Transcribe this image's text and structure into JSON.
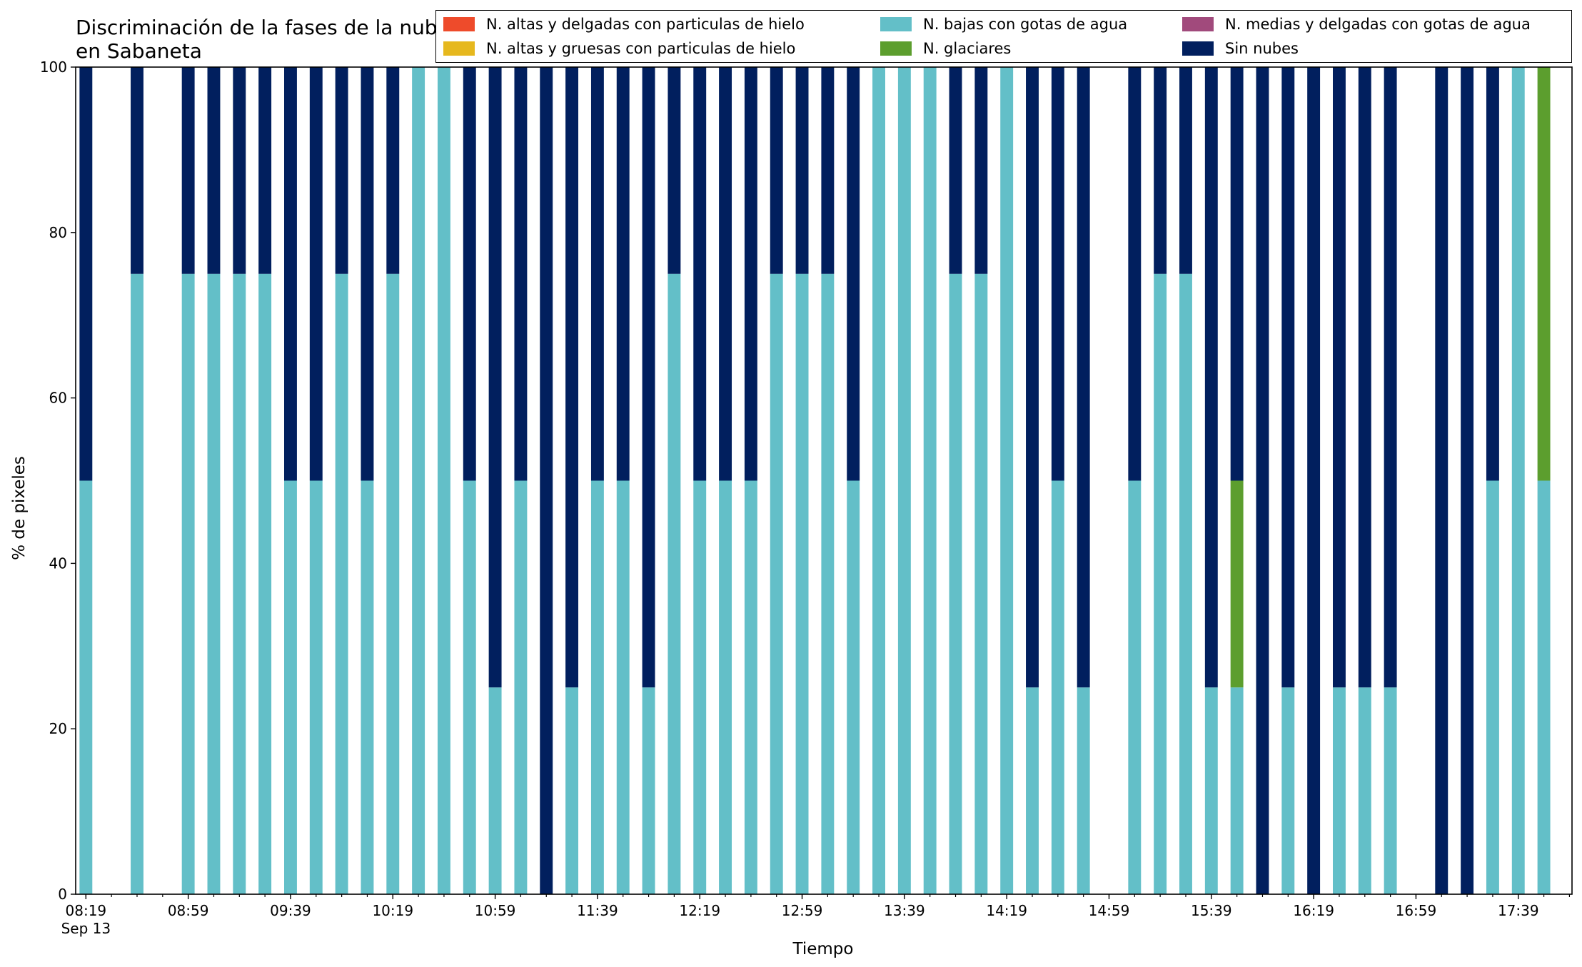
{
  "chart_data": {
    "type": "bar",
    "stacked": true,
    "title": "Discriminación de la fases de la nube en Sabaneta",
    "xlabel": "Tiempo",
    "ylabel": "% de pixeles",
    "ylim": [
      0,
      100
    ],
    "yticks": [
      0,
      20,
      40,
      60,
      80,
      100
    ],
    "xlim_minutes": [
      495,
      1080
    ],
    "xticks": [
      {
        "minute": 499,
        "label": "08:19",
        "sublabel": "Sep 13"
      },
      {
        "minute": 539,
        "label": "08:59"
      },
      {
        "minute": 579,
        "label": "09:39"
      },
      {
        "minute": 619,
        "label": "10:19"
      },
      {
        "minute": 659,
        "label": "10:59"
      },
      {
        "minute": 699,
        "label": "11:39"
      },
      {
        "minute": 739,
        "label": "12:19"
      },
      {
        "minute": 779,
        "label": "12:59"
      },
      {
        "minute": 819,
        "label": "13:39"
      },
      {
        "minute": 859,
        "label": "14:19"
      },
      {
        "minute": 899,
        "label": "14:59"
      },
      {
        "minute": 939,
        "label": "15:39"
      },
      {
        "minute": 979,
        "label": "16:19"
      },
      {
        "minute": 1019,
        "label": "16:59"
      },
      {
        "minute": 1059,
        "label": "17:39"
      }
    ],
    "minor_tick_step_minutes": 10,
    "bar_width_minutes": 5,
    "grid": false,
    "legend_position": "top-right",
    "x": [
      "08:19",
      "08:39",
      "08:59",
      "09:09",
      "09:19",
      "09:29",
      "09:39",
      "09:49",
      "09:59",
      "10:09",
      "10:19",
      "10:29",
      "10:39",
      "10:49",
      "10:59",
      "11:09",
      "11:19",
      "11:29",
      "11:39",
      "11:49",
      "11:59",
      "12:09",
      "12:19",
      "12:29",
      "12:39",
      "12:49",
      "12:59",
      "13:09",
      "13:19",
      "13:29",
      "13:39",
      "13:49",
      "13:59",
      "14:09",
      "14:19",
      "14:29",
      "14:39",
      "14:49",
      "15:09",
      "15:19",
      "15:29",
      "15:39",
      "15:49",
      "15:59",
      "16:09",
      "16:19",
      "16:29",
      "16:39",
      "16:49",
      "17:09",
      "17:19",
      "17:29",
      "17:39",
      "17:49"
    ],
    "series": [
      {
        "name": "N. altas y delgadas con particulas de hielo",
        "color": "#ee4b2b",
        "values": [
          0,
          0,
          0,
          0,
          0,
          0,
          0,
          0,
          0,
          0,
          0,
          0,
          0,
          0,
          0,
          0,
          0,
          0,
          0,
          0,
          0,
          0,
          0,
          0,
          0,
          0,
          0,
          0,
          0,
          0,
          0,
          0,
          0,
          0,
          0,
          0,
          0,
          0,
          0,
          0,
          0,
          0,
          0,
          0,
          0,
          0,
          0,
          0,
          0,
          0,
          0,
          0,
          0,
          0
        ]
      },
      {
        "name": "N. altas y gruesas con particulas de hielo",
        "color": "#e6b81e",
        "values": [
          0,
          0,
          0,
          0,
          0,
          0,
          0,
          0,
          0,
          0,
          0,
          0,
          0,
          0,
          0,
          0,
          0,
          0,
          0,
          0,
          0,
          0,
          0,
          0,
          0,
          0,
          0,
          0,
          0,
          0,
          0,
          0,
          0,
          0,
          0,
          0,
          0,
          0,
          0,
          0,
          0,
          0,
          0,
          0,
          0,
          0,
          0,
          0,
          0,
          0,
          0,
          0,
          0,
          0
        ]
      },
      {
        "name": "N. bajas con gotas de agua",
        "color": "#63bfc8",
        "values": [
          50,
          75,
          75,
          75,
          75,
          75,
          50,
          50,
          75,
          50,
          75,
          100,
          100,
          50,
          25,
          50,
          0,
          25,
          50,
          50,
          25,
          75,
          50,
          50,
          50,
          75,
          75,
          75,
          50,
          100,
          100,
          100,
          75,
          75,
          100,
          25,
          50,
          25,
          50,
          75,
          75,
          25,
          25,
          0,
          25,
          0,
          25,
          25,
          25,
          0,
          0,
          50,
          100,
          50
        ]
      },
      {
        "name": "N. glaciares",
        "color": "#5c9e2e",
        "values": [
          0,
          0,
          0,
          0,
          0,
          0,
          0,
          0,
          0,
          0,
          0,
          0,
          0,
          0,
          0,
          0,
          0,
          0,
          0,
          0,
          0,
          0,
          0,
          0,
          0,
          0,
          0,
          0,
          0,
          0,
          0,
          0,
          0,
          0,
          0,
          0,
          0,
          0,
          0,
          0,
          0,
          0,
          25,
          0,
          0,
          0,
          0,
          0,
          0,
          0,
          0,
          0,
          0,
          50
        ]
      },
      {
        "name": "N. medias y delgadas con gotas de agua",
        "color": "#a14a7c",
        "values": [
          0,
          0,
          0,
          0,
          0,
          0,
          0,
          0,
          0,
          0,
          0,
          0,
          0,
          0,
          0,
          0,
          0,
          0,
          0,
          0,
          0,
          0,
          0,
          0,
          0,
          0,
          0,
          0,
          0,
          0,
          0,
          0,
          0,
          0,
          0,
          0,
          0,
          0,
          0,
          0,
          0,
          0,
          0,
          0,
          0,
          0,
          0,
          0,
          0,
          0,
          0,
          0,
          0,
          0
        ]
      },
      {
        "name": "Sin nubes",
        "color": "#011f5e",
        "values": [
          50,
          25,
          25,
          25,
          25,
          25,
          50,
          50,
          25,
          50,
          25,
          0,
          0,
          50,
          75,
          50,
          100,
          75,
          50,
          50,
          75,
          25,
          50,
          50,
          50,
          25,
          25,
          25,
          50,
          0,
          0,
          0,
          25,
          25,
          0,
          75,
          50,
          75,
          50,
          25,
          25,
          75,
          50,
          100,
          75,
          100,
          75,
          75,
          75,
          100,
          100,
          50,
          0,
          0
        ]
      }
    ]
  }
}
